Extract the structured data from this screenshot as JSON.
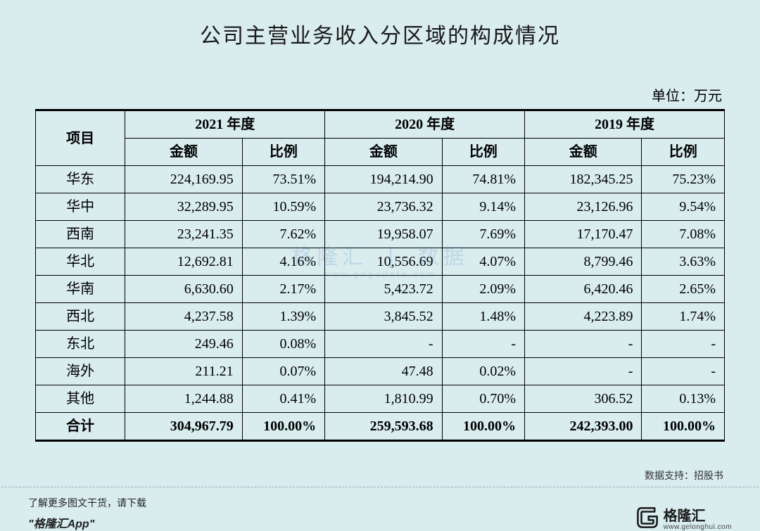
{
  "title": "公司主营业务收入分区域的构成情况",
  "unit_label": "单位：万元",
  "watermark": {
    "cn_left": "格隆汇",
    "cn_right": "数据",
    "en": "www.gogudata.com"
  },
  "source_label": "数据支持：招股书",
  "footer": {
    "line1": "了解更多图文干货，请下载",
    "line2": "\"格隆汇App\"",
    "brand": "格隆汇",
    "brand_en": "www.gelonghui.com"
  },
  "table": {
    "type": "table",
    "background_color": "#d9ecee",
    "border_color": "#000000",
    "header_font": "SimSun bold",
    "body_font_cn": "SimSun",
    "body_font_num": "Times New Roman",
    "col_project_label": "项目",
    "year_groups": [
      "2021 年度",
      "2020 年度",
      "2019 年度"
    ],
    "sub_headers": [
      "金额",
      "比例"
    ],
    "columns_align": [
      "center",
      "right",
      "right",
      "right",
      "right",
      "right",
      "right"
    ],
    "rows": [
      {
        "label": "华东",
        "cells": [
          "224,169.95",
          "73.51%",
          "194,214.90",
          "74.81%",
          "182,345.25",
          "75.23%"
        ]
      },
      {
        "label": "华中",
        "cells": [
          "32,289.95",
          "10.59%",
          "23,736.32",
          "9.14%",
          "23,126.96",
          "9.54%"
        ]
      },
      {
        "label": "西南",
        "cells": [
          "23,241.35",
          "7.62%",
          "19,958.07",
          "7.69%",
          "17,170.47",
          "7.08%"
        ]
      },
      {
        "label": "华北",
        "cells": [
          "12,692.81",
          "4.16%",
          "10,556.69",
          "4.07%",
          "8,799.46",
          "3.63%"
        ]
      },
      {
        "label": "华南",
        "cells": [
          "6,630.60",
          "2.17%",
          "5,423.72",
          "2.09%",
          "6,420.46",
          "2.65%"
        ]
      },
      {
        "label": "西北",
        "cells": [
          "4,237.58",
          "1.39%",
          "3,845.52",
          "1.48%",
          "4,223.89",
          "1.74%"
        ]
      },
      {
        "label": "东北",
        "cells": [
          "249.46",
          "0.08%",
          "-",
          "-",
          "-",
          "-"
        ]
      },
      {
        "label": "海外",
        "cells": [
          "211.21",
          "0.07%",
          "47.48",
          "0.02%",
          "-",
          "-"
        ]
      },
      {
        "label": "其他",
        "cells": [
          "1,244.88",
          "0.41%",
          "1,810.99",
          "0.70%",
          "306.52",
          "0.13%"
        ]
      }
    ],
    "total_row": {
      "label": "合计",
      "cells": [
        "304,967.79",
        "100.00%",
        "259,593.68",
        "100.00%",
        "242,393.00",
        "100.00%"
      ]
    }
  }
}
